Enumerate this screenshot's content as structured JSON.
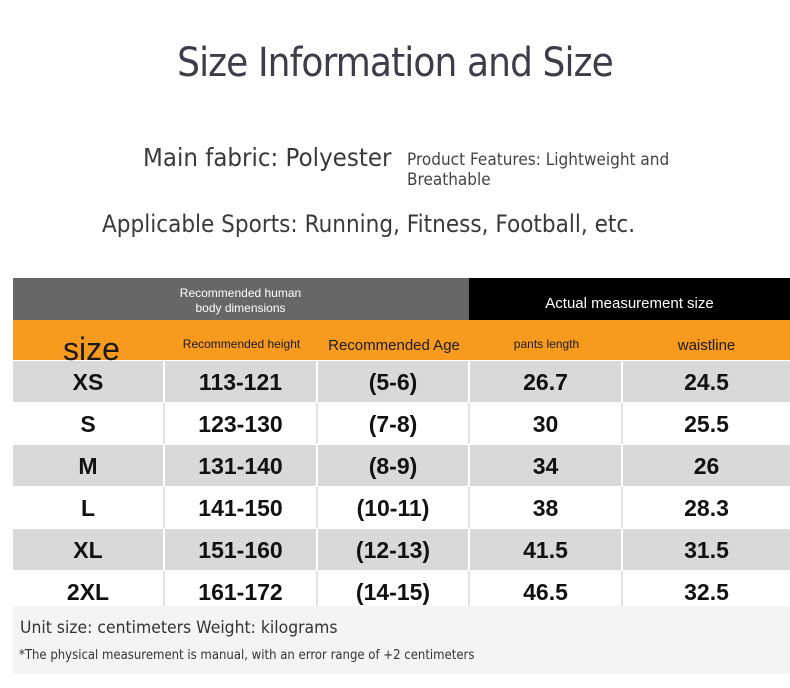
{
  "title": "Size Information and Size",
  "fabric": "Main fabric: Polyester",
  "features": "Product Features: Lightweight and Breathable",
  "sports": "Applicable Sports: Running, Fitness, Football, etc.",
  "table": {
    "group_headers": {
      "recommended": "Recommended human body dimensions",
      "actual": "Actual measurement size"
    },
    "columns": [
      "size",
      "Recommended height",
      "Recommended Age",
      "pants length",
      "waistline"
    ],
    "rows": [
      [
        "XS",
        "113-121",
        "(5-6)",
        "26.7",
        "24.5"
      ],
      [
        "S",
        "123-130",
        "(7-8)",
        "30",
        "25.5"
      ],
      [
        "M",
        "131-140",
        "(8-9)",
        "34",
        "26"
      ],
      [
        "L",
        "141-150",
        "(10-11)",
        "38",
        "28.3"
      ],
      [
        "XL",
        "151-160",
        "(12-13)",
        "41.5",
        "31.5"
      ],
      [
        "2XL",
        "161-172",
        "(14-15)",
        "46.5",
        "32.5"
      ]
    ]
  },
  "unit_note": "Unit size: centimeters Weight: kilograms",
  "error_note": "*The physical measurement is manual, with an error range of +2 centimeters",
  "colors": {
    "orange": "#f79a1e",
    "grey_header": "#676767",
    "black_header": "#000000",
    "row_grey": "#d9d9d9"
  }
}
